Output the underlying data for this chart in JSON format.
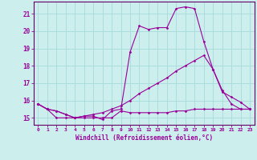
{
  "xlabel": "Windchill (Refroidissement éolien,°C)",
  "background_color": "#cceeed",
  "grid_color": "#aadddd",
  "line_color": "#990099",
  "spine_color": "#660066",
  "xlim": [
    -0.5,
    23.5
  ],
  "ylim": [
    14.6,
    21.7
  ],
  "yticks": [
    15,
    16,
    17,
    18,
    19,
    20,
    21
  ],
  "xticks": [
    0,
    1,
    2,
    3,
    4,
    5,
    6,
    7,
    8,
    9,
    10,
    11,
    12,
    13,
    14,
    15,
    16,
    17,
    18,
    19,
    20,
    21,
    22,
    23
  ],
  "series": [
    {
      "x": [
        0,
        1,
        2,
        3,
        4,
        5,
        6,
        7,
        8,
        9,
        10,
        11,
        12,
        13,
        14,
        15,
        16,
        17,
        18,
        19,
        20,
        21,
        22,
        23
      ],
      "y": [
        15.8,
        15.5,
        15.4,
        15.2,
        15.0,
        15.1,
        15.1,
        14.9,
        15.4,
        15.5,
        18.8,
        20.3,
        20.1,
        20.2,
        20.2,
        21.3,
        21.4,
        21.3,
        19.4,
        17.8,
        16.6,
        15.8,
        15.5,
        15.5
      ]
    },
    {
      "x": [
        0,
        1,
        2,
        3,
        4,
        5,
        6,
        7,
        8,
        9,
        10,
        11,
        12,
        13,
        14,
        15,
        16,
        17,
        18,
        19,
        20,
        21,
        22,
        23
      ],
      "y": [
        15.8,
        15.5,
        15.4,
        15.2,
        15.0,
        15.1,
        15.2,
        15.3,
        15.5,
        15.7,
        16.0,
        16.4,
        16.7,
        17.0,
        17.3,
        17.7,
        18.0,
        18.3,
        18.6,
        17.8,
        16.5,
        16.2,
        15.9,
        15.5
      ]
    },
    {
      "x": [
        0,
        1,
        2,
        3,
        4,
        5,
        6,
        7,
        8,
        9,
        10,
        11,
        12,
        13,
        14,
        15,
        16,
        17,
        18,
        19,
        20,
        21,
        22,
        23
      ],
      "y": [
        15.8,
        15.5,
        15.0,
        15.0,
        15.0,
        15.0,
        15.0,
        15.0,
        15.0,
        15.4,
        15.3,
        15.3,
        15.3,
        15.3,
        15.3,
        15.4,
        15.4,
        15.5,
        15.5,
        15.5,
        15.5,
        15.5,
        15.5,
        15.5
      ]
    }
  ]
}
